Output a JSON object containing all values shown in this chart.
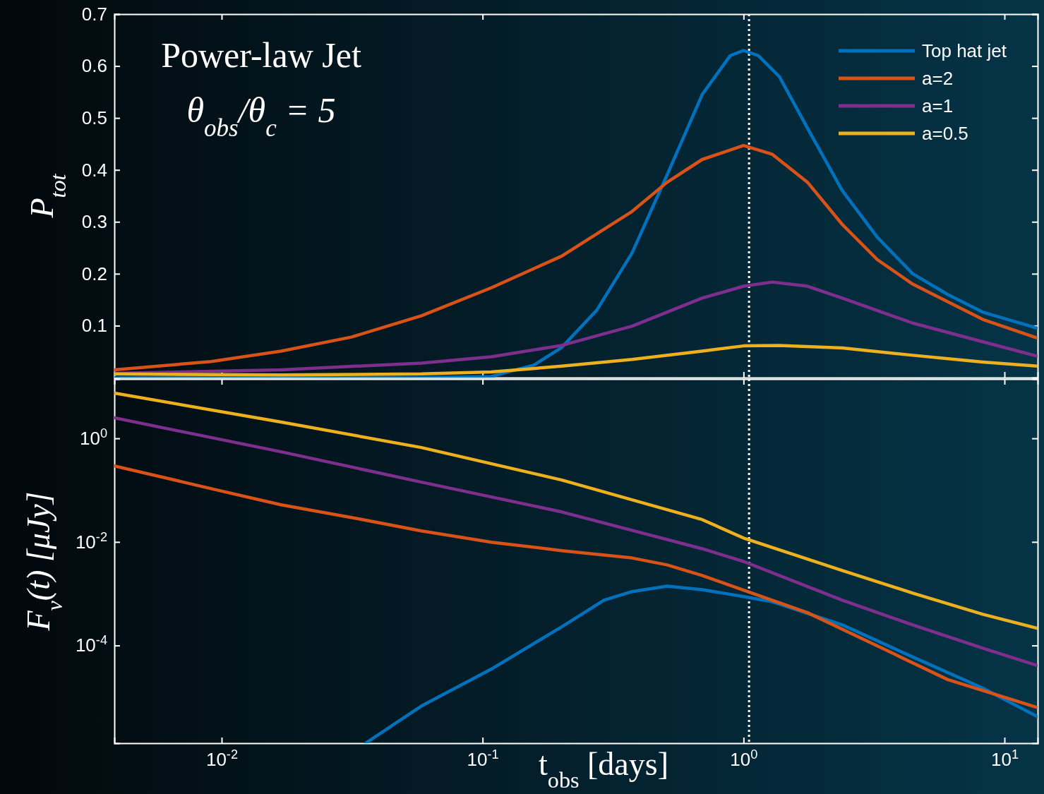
{
  "chart_data": [
    {
      "type": "line",
      "ylabel": "P$_{tot}$",
      "annotations": [
        "Power-law Jet",
        "θ$_{obs}$/θ$_{c}$ = 5"
      ],
      "legend": "top right",
      "tick_labels": "y",
      "log": "x",
      "line_style": "solid",
      "marker": "none",
      "xlim": [
        0.00388,
        13.4
      ],
      "xticks": [
        {
          "value": 0.01,
          "label": null
        },
        {
          "value": 0.1,
          "label": null
        },
        {
          "value": 1,
          "label": null
        },
        {
          "value": 10,
          "label": null
        }
      ],
      "ylim": [
        0,
        0.7
      ],
      "yticks": [
        0.1,
        0.2,
        0.3,
        0.4,
        0.5,
        0.6,
        0.7
      ],
      "ref_lines": [
        {
          "axis": "x",
          "value": 1.05,
          "color": "#ffffff",
          "line_style": "dotted"
        }
      ],
      "series": [
        {
          "name": "Top hat jet",
          "color": "#0072bd",
          "x": [
            0.00388,
            0.0583,
            0.108,
            0.123,
            0.157,
            0.201,
            0.274,
            0.374,
            0.509,
            0.694,
            0.889,
            1.0,
            1.14,
            1.37,
            1.76,
            2.39,
            3.26,
            4.45,
            6.06,
            8.26,
            13.4
          ],
          "values": [
            0,
            0,
            0.002,
            0.01,
            0.024,
            0.058,
            0.13,
            0.24,
            0.39,
            0.545,
            0.62,
            0.63,
            0.62,
            0.58,
            0.48,
            0.36,
            0.27,
            0.2,
            0.16,
            0.126,
            0.095
          ]
        },
        {
          "name": "a=2",
          "color": "#d95319",
          "x": [
            0.00388,
            0.00912,
            0.0169,
            0.0314,
            0.0583,
            0.108,
            0.201,
            0.374,
            0.509,
            0.694,
            1.0,
            1.29,
            1.76,
            2.39,
            3.26,
            4.45,
            6.06,
            8.26,
            13.4
          ],
          "values": [
            0.015,
            0.031,
            0.051,
            0.078,
            0.119,
            0.173,
            0.234,
            0.32,
            0.376,
            0.42,
            0.447,
            0.43,
            0.376,
            0.295,
            0.227,
            0.18,
            0.146,
            0.112,
            0.076
          ]
        },
        {
          "name": "a=1",
          "color": "#7e2f8e",
          "x": [
            0.00388,
            0.0169,
            0.0583,
            0.108,
            0.201,
            0.374,
            0.694,
            1.0,
            1.29,
            1.76,
            2.39,
            4.45,
            8.26,
            13.4
          ],
          "values": [
            0.008,
            0.015,
            0.028,
            0.04,
            0.062,
            0.099,
            0.153,
            0.176,
            0.184,
            0.176,
            0.153,
            0.105,
            0.069,
            0.041
          ]
        },
        {
          "name": "a=0.5",
          "color": "#edb120",
          "x": [
            0.00388,
            0.0169,
            0.0583,
            0.108,
            0.201,
            0.374,
            0.694,
            1.0,
            1.37,
            2.39,
            4.45,
            8.26,
            13.4
          ],
          "values": [
            0.007,
            0.005,
            0.007,
            0.011,
            0.022,
            0.035,
            0.051,
            0.061,
            0.062,
            0.057,
            0.043,
            0.03,
            0.022
          ]
        }
      ]
    },
    {
      "type": "line",
      "xlabel": "t$_{obs}$ [days]",
      "ylabel": "F$_{ν}$(t) [μJy]",
      "log": "xy",
      "line_style": "solid",
      "marker": "none",
      "xlim": [
        0.00388,
        13.4
      ],
      "xticks": [
        {
          "value": 0.01,
          "label": "10$^{-2}$"
        },
        {
          "value": 0.1,
          "label": "10$^{-1}$"
        },
        {
          "value": 1,
          "label": "10$^{0}$"
        },
        {
          "value": 10,
          "label": "10$^{1}$"
        }
      ],
      "ylim": [
        1.3e-06,
        14
      ],
      "yticks": [
        {
          "value": 0.0001,
          "label": "10$^{-4}$"
        },
        {
          "value": 0.01,
          "label": "10$^{-2}$"
        },
        {
          "value": 1,
          "label": "10$^{0}$"
        }
      ],
      "ref_lines": [
        {
          "axis": "x",
          "value": 1.05,
          "color": "#ffffff",
          "line_style": "dotted"
        }
      ],
      "series": [
        {
          "color": "#0072bd",
          "x": [
            0.0356,
            0.0583,
            0.108,
            0.201,
            0.292,
            0.374,
            0.509,
            0.694,
            1.0,
            1.29,
            2.39,
            4.45,
            8.26,
            13.4
          ],
          "values": [
            1.3e-06,
            6.8e-06,
            3.5e-05,
            0.00023,
            0.00075,
            0.0011,
            0.0014,
            0.0012,
            0.00088,
            0.0007,
            0.00025,
            6e-05,
            1.5e-05,
            4.2e-06
          ]
        },
        {
          "color": "#d95319",
          "x": [
            0.00388,
            0.00912,
            0.0169,
            0.0314,
            0.0583,
            0.108,
            0.201,
            0.374,
            0.509,
            0.694,
            1.0,
            1.76,
            3.26,
            6.06,
            13.4
          ],
          "values": [
            0.294,
            0.107,
            0.052,
            0.0297,
            0.0163,
            0.0099,
            0.0068,
            0.0049,
            0.0036,
            0.00225,
            0.00117,
            0.00043,
            9.8e-05,
            2.2e-05,
            6.3e-06
          ]
        },
        {
          "color": "#7e2f8e",
          "x": [
            0.00388,
            0.0169,
            0.0583,
            0.201,
            0.694,
            1.0,
            2.39,
            4.45,
            8.26,
            13.4
          ],
          "values": [
            2.49,
            0.55,
            0.143,
            0.038,
            0.0074,
            0.0042,
            0.00075,
            0.00025,
            8.9e-05,
            4.1e-05
          ]
        },
        {
          "color": "#edb120",
          "x": [
            0.00388,
            0.0169,
            0.0583,
            0.201,
            0.694,
            1.0,
            2.39,
            4.45,
            8.26,
            13.4
          ],
          "values": [
            7.5,
            2.06,
            0.665,
            0.157,
            0.027,
            0.0119,
            0.0028,
            0.00103,
            0.0004,
            0.000214
          ]
        }
      ]
    }
  ]
}
